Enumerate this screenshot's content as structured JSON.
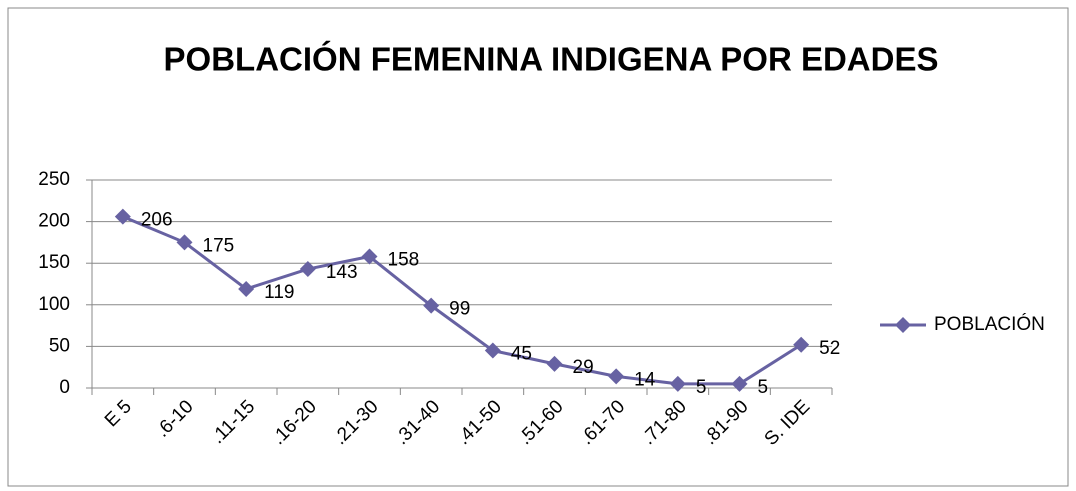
{
  "chart_data": {
    "type": "line",
    "title": "POBLACIÓN FEMENINA INDIGENA POR EDADES",
    "categories": [
      "E 5",
      ".6-10",
      ".11-15",
      ".16-20",
      ".21-30",
      ".31-40",
      ".41-50",
      ".51-60",
      ".61-70",
      ".71-80",
      ".81-90",
      "S. IDE"
    ],
    "series": [
      {
        "name": "POBLACIÓN",
        "color": "#6762a2",
        "values": [
          206,
          175,
          119,
          143,
          158,
          99,
          45,
          29,
          14,
          5,
          5,
          52
        ]
      }
    ],
    "ylim": [
      0,
      250
    ],
    "yticks": [
      0,
      50,
      100,
      150,
      200,
      250
    ],
    "grid": true,
    "legend": "right",
    "data_labels": true
  }
}
